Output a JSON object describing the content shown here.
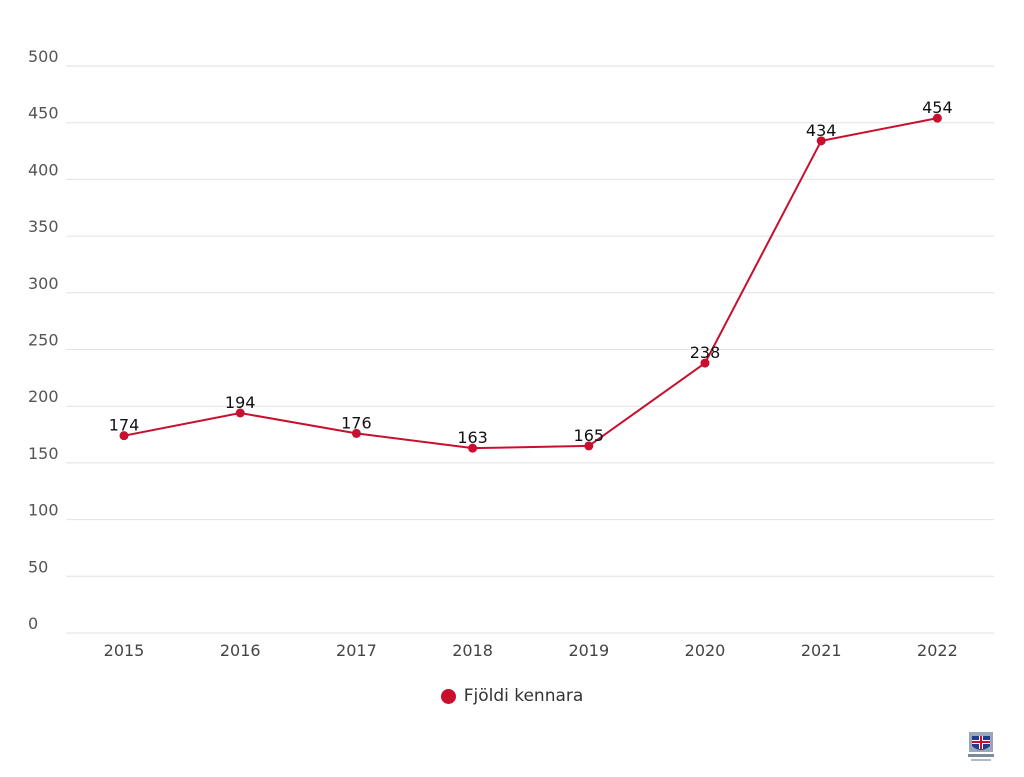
{
  "chart_data": {
    "type": "line",
    "categories": [
      "2015",
      "2016",
      "2017",
      "2018",
      "2019",
      "2020",
      "2021",
      "2022"
    ],
    "series": [
      {
        "name": "Fjöldi kennara",
        "values": [
          174,
          194,
          176,
          163,
          165,
          238,
          434,
          454
        ]
      }
    ],
    "ylim": [
      0,
      500
    ],
    "yticks": [
      0,
      50,
      100,
      150,
      200,
      250,
      300,
      350,
      400,
      450,
      500
    ],
    "grid": true,
    "legend": "bottom-center",
    "data_labels": true
  },
  "colors": {
    "series": "#c8102e",
    "grid": "#e2e2e2"
  },
  "logo": {
    "icon": "coat-of-arms-icon"
  }
}
